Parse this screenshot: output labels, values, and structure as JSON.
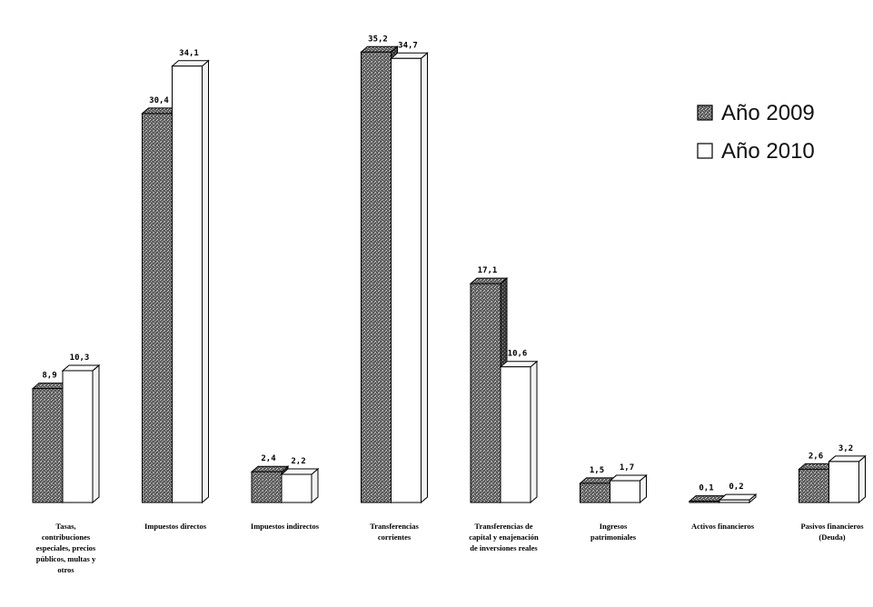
{
  "chart_data": {
    "type": "bar",
    "categories": [
      [
        "Tasas,",
        "contribuciones",
        "especiales, precios",
        "públicos, multas y",
        "otros"
      ],
      [
        "Impuestos directos"
      ],
      [
        "Impuestos indirectos"
      ],
      [
        "Transferencias",
        "corrientes"
      ],
      [
        "Transferencias de",
        "capital y enajenación",
        "de inversiones reales"
      ],
      [
        "Ingresos",
        "patrimoniales"
      ],
      [
        "Activos financieros"
      ],
      [
        "Pasivos financieros",
        "(Deuda)"
      ]
    ],
    "series": [
      {
        "name": "Año 2009",
        "values": [
          8.9,
          30.4,
          2.4,
          35.2,
          17.1,
          1.5,
          0.1,
          2.6
        ],
        "labels": [
          "8,9",
          "30,4",
          "2,4",
          "35,2",
          "17,1",
          "1,5",
          "0,1",
          "2,6"
        ]
      },
      {
        "name": "Año 2010",
        "values": [
          10.3,
          34.1,
          2.2,
          34.7,
          10.6,
          1.7,
          0.2,
          3.2
        ],
        "labels": [
          "10,3",
          "34,1",
          "2,2",
          "34,7",
          "10,6",
          "1,7",
          "0,2",
          "3,2"
        ]
      }
    ],
    "ylim": [
      0,
      36
    ],
    "legend_position": "top-right",
    "grid": false,
    "colors": {
      "series_2009": "#4a4a4a",
      "series_2010": "#ffffff",
      "outline": "#000000"
    }
  }
}
